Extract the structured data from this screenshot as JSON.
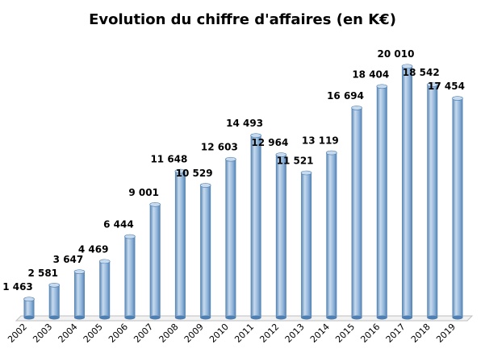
{
  "chart_data": {
    "type": "bar",
    "title": "Evolution du chiffre d'affaires (en K€)",
    "xlabel": "",
    "ylabel": "",
    "ylim": [
      0,
      22000
    ],
    "grid": false,
    "categories": [
      "2002",
      "2003",
      "2004",
      "2005",
      "2006",
      "2007",
      "2008",
      "2009",
      "2010",
      "2011",
      "2012",
      "2013",
      "2014",
      "2015",
      "2016",
      "2017",
      "2018",
      "2019"
    ],
    "values": [
      1463,
      2581,
      3647,
      4469,
      6444,
      9001,
      11648,
      10529,
      12603,
      14493,
      12964,
      11521,
      13119,
      16694,
      18404,
      20010,
      18542,
      17454
    ],
    "value_labels": [
      "1 463",
      "2 581",
      "3 647",
      "4 469",
      "6 444",
      "9 001",
      "11 648",
      "10 529",
      "12 603",
      "14 493",
      "12 964",
      "11 521",
      "13 119",
      "16 694",
      "18 404",
      "20 010",
      "18 542",
      "17 454"
    ],
    "bar_color": "#8FB3D9",
    "bar_dark": "#4F7FB0",
    "bar_light": "#C8DBEE"
  }
}
